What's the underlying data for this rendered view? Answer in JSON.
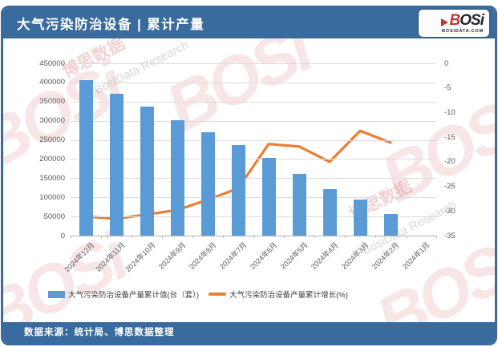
{
  "header": {
    "title": "大气污染防治设备 | 累计产量",
    "logo": {
      "text_b": "B",
      "text_rest": "OSi",
      "domain": "BOSIDATA.COM"
    }
  },
  "footer": {
    "source": "数据来源：统计局、博思数据整理"
  },
  "watermark": {
    "brand": "BOSi",
    "cn": "博思数据",
    "en": "BosiData Research"
  },
  "colors": {
    "theme_blue": "#3A6B9E",
    "bar_blue": "#5B9BD5",
    "line_orange": "#ED7D31",
    "grid": "#DCDCDC",
    "axis_text": "#595959"
  },
  "chart_data": {
    "type": "bar",
    "subtype": "bar+line combo, dual axis",
    "title": "大气污染防治设备 | 累计产量",
    "categories": [
      "2024年12月",
      "2024年11月",
      "2024年10月",
      "2024年9月",
      "2024年8月",
      "2024年7月",
      "2024年6月",
      "2024年5月",
      "2024年4月",
      "2024年3月",
      "2024年2月",
      "2024年1月"
    ],
    "series": [
      {
        "name": "大气污染防治设备产量累计值(台（套）)",
        "type": "bar",
        "axis": "left",
        "color": "#5B9BD5",
        "values": [
          407000,
          370000,
          337000,
          302000,
          270000,
          237000,
          204000,
          161000,
          122000,
          94000,
          56000,
          null
        ]
      },
      {
        "name": "大气污染防治设备产量累计增长(%)",
        "type": "line",
        "axis": "right",
        "color": "#ED7D31",
        "values": [
          -31.1,
          -31.6,
          -30.7,
          -29.8,
          -27.7,
          -25.4,
          -16.4,
          -16.9,
          -20.0,
          -13.7,
          -16.1,
          null
        ]
      }
    ],
    "left_axis": {
      "min": 0,
      "max": 450000,
      "step": 50000,
      "tick_labels_top_to_bottom": [
        "450000",
        "400000",
        "350000",
        "300000",
        "250000",
        "200000",
        "150000",
        "100000",
        "50000",
        "0"
      ]
    },
    "right_axis": {
      "min": -35,
      "max": 0,
      "step": 5,
      "tick_labels_top_to_bottom": [
        "0",
        "-5",
        "-10",
        "-15",
        "-20",
        "-25",
        "-30",
        "-35"
      ]
    },
    "grid": true,
    "legend_position": "bottom"
  }
}
